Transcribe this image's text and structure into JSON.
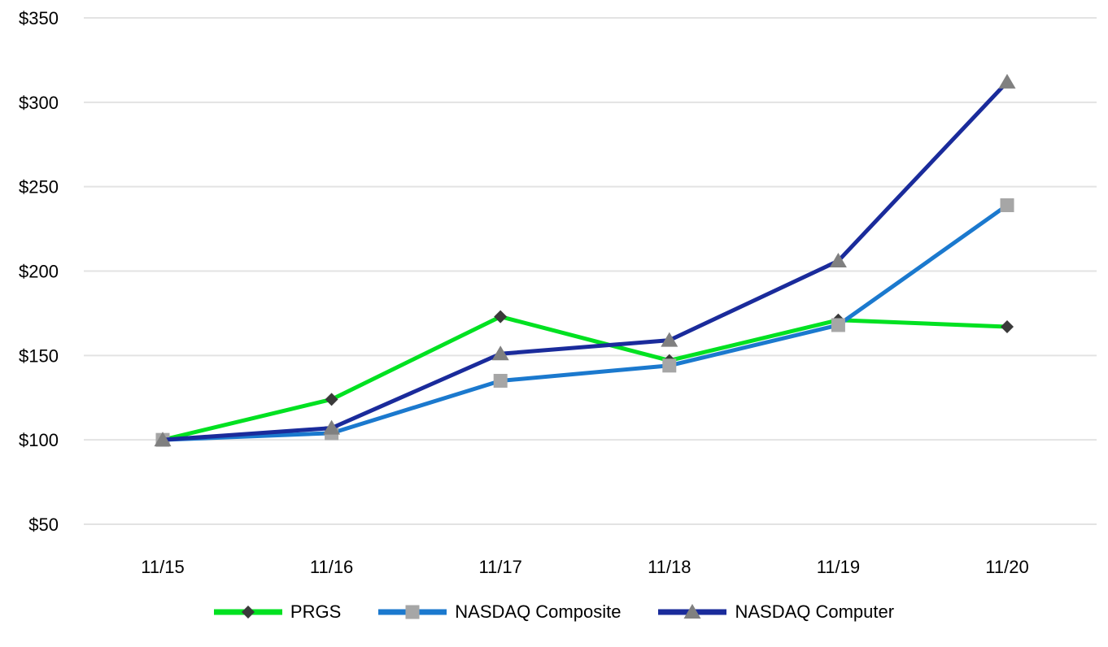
{
  "chart_data": {
    "type": "line",
    "title": "",
    "categories": [
      "11/15",
      "11/16",
      "11/17",
      "11/18",
      "11/19",
      "11/20"
    ],
    "series": [
      {
        "name": "PRGS",
        "slug": "prgs",
        "color": "#00E121",
        "marker": "diamond",
        "marker_color": "#3A3A3A",
        "values": [
          100,
          124,
          173,
          147,
          171,
          167
        ]
      },
      {
        "name": "NASDAQ Composite",
        "slug": "nasdaq-composite",
        "color": "#1B79CE",
        "marker": "square",
        "marker_color": "#A6A6A6",
        "values": [
          100,
          104,
          135,
          144,
          168,
          239
        ]
      },
      {
        "name": "NASDAQ Computer",
        "slug": "nasdaq-computer",
        "color": "#1A2B9B",
        "marker": "triangle",
        "marker_color": "#808080",
        "values": [
          100,
          107,
          151,
          159,
          206,
          312
        ]
      }
    ],
    "y_axis": {
      "ticks": [
        "$350",
        "$300",
        "$250",
        "$200",
        "$150",
        "$100",
        "$50"
      ],
      "tick_values": [
        350,
        300,
        250,
        200,
        150,
        100,
        50
      ],
      "min": 50,
      "max": 350
    },
    "grid": true,
    "gridline_color": "#E3E3E3",
    "legend_position": "bottom"
  }
}
